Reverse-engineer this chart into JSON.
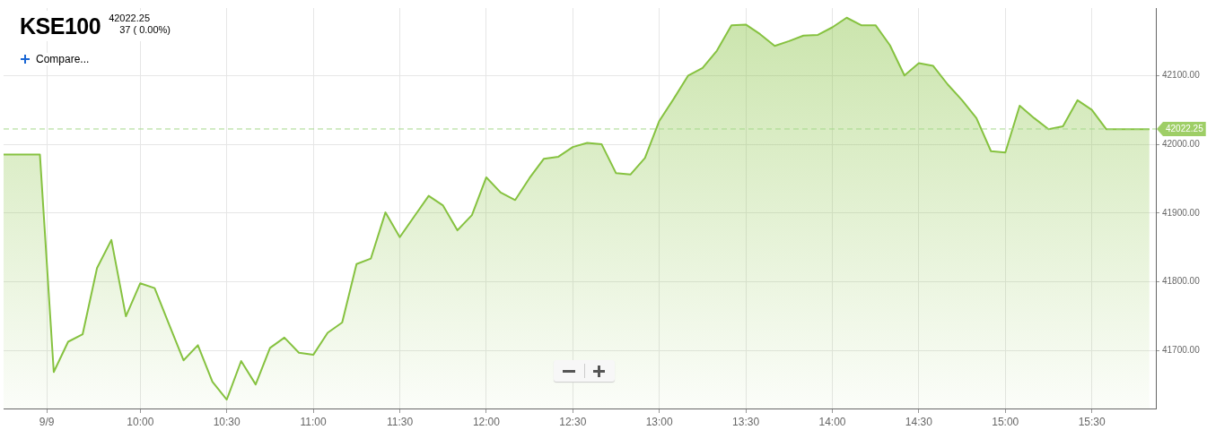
{
  "chart_data": {
    "type": "area",
    "title": "KSE100",
    "subtitle": "42022.25",
    "annotations": [
      "37 ( 0.00%)",
      "Compare..."
    ],
    "x": [
      9.21,
      9.42,
      9.5,
      9.583,
      9.667,
      9.75,
      9.833,
      9.917,
      10,
      10.083,
      10.167,
      10.25,
      10.333,
      10.417,
      10.5,
      10.583,
      10.667,
      10.75,
      10.833,
      10.917,
      11,
      11.083,
      11.167,
      11.25,
      11.333,
      11.417,
      11.5,
      11.583,
      11.667,
      11.75,
      11.833,
      11.917,
      12,
      12.083,
      12.167,
      12.25,
      12.333,
      12.417,
      12.5,
      12.583,
      12.667,
      12.75,
      12.833,
      12.917,
      13,
      13.083,
      13.167,
      13.25,
      13.333,
      13.417,
      13.5,
      13.583,
      13.667,
      13.75,
      13.833,
      13.917,
      14,
      14.083,
      14.167,
      14.25,
      14.333,
      14.417,
      14.5,
      14.583,
      14.667,
      14.75,
      14.833,
      14.917,
      15,
      15.083,
      15.167,
      15.25,
      15.333,
      15.417,
      15.5,
      15.583,
      15.833
    ],
    "series": [
      {
        "color": "#86c240",
        "values": [
          41985,
          41985,
          41669,
          41713,
          41724,
          41820,
          41861,
          41750,
          41798,
          41791,
          41738,
          41686,
          41708,
          41655,
          41629,
          41685,
          41651,
          41704,
          41719,
          41697,
          41694,
          41726,
          41741,
          41826,
          41834,
          41901,
          41865,
          41895,
          41925,
          41911,
          41875,
          41897,
          41952,
          41930,
          41919,
          41951,
          41979,
          41982,
          41996,
          42002,
          42000,
          41958,
          41956,
          41980,
          42034,
          42066,
          42100,
          42111,
          42136,
          42173,
          42174,
          42160,
          42143,
          42150,
          42158,
          42159,
          42170,
          42184,
          42173,
          42173,
          42144,
          42100,
          42118,
          42114,
          42087,
          42064,
          42038,
          41990,
          41988,
          42056,
          42038,
          42022,
          42026,
          42064,
          42050,
          42022,
          42022
        ]
      }
    ],
    "xlim": [
      9.21,
      15.87
    ],
    "xticks": [
      {
        "value": 9.46,
        "label": "9/9"
      },
      {
        "value": 10,
        "label": "10:00"
      },
      {
        "value": 10.5,
        "label": "10:30"
      },
      {
        "value": 11,
        "label": "11:00"
      },
      {
        "value": 11.5,
        "label": "11:30"
      },
      {
        "value": 12,
        "label": "12:00"
      },
      {
        "value": 12.5,
        "label": "12:30"
      },
      {
        "value": 13,
        "label": "13:00"
      },
      {
        "value": 13.5,
        "label": "13:30"
      },
      {
        "value": 14,
        "label": "14:00"
      },
      {
        "value": 14.5,
        "label": "14:30"
      },
      {
        "value": 15,
        "label": "15:00"
      },
      {
        "value": 15.5,
        "label": "15:30"
      }
    ],
    "ylim": [
      41616,
      42198
    ],
    "yticks": [
      {
        "value": 41700,
        "label": "41700.00"
      },
      {
        "value": 41800,
        "label": "41800.00"
      },
      {
        "value": 41900,
        "label": "41900.00"
      },
      {
        "value": 42000,
        "label": "42000.00"
      },
      {
        "value": 42100,
        "label": "42100.00"
      }
    ],
    "ref_lines": [
      {
        "axis": "y",
        "value": 42022.25,
        "label": "42022.25",
        "color": "#a5d88a",
        "line_style": "dashed"
      }
    ],
    "grid": true,
    "marker": "none",
    "line_style": "solid",
    "legend": false
  }
}
